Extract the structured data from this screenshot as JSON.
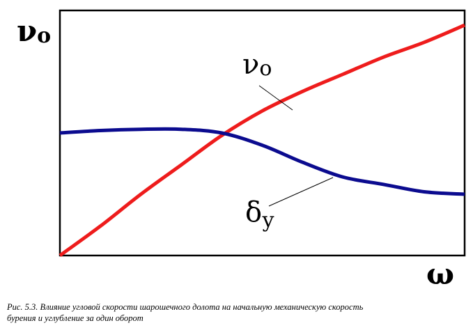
{
  "chart_data": {
    "type": "line",
    "title": "",
    "ylabel": "ν",
    "ylabel_subscript": "о",
    "xlabel": "ω",
    "xlim": [
      0,
      1
    ],
    "ylim": [
      0,
      1
    ],
    "grid": false,
    "legend": "none",
    "series": [
      {
        "name": "ν",
        "name_subscript": "о",
        "color": "#ee1c1c",
        "x": [
          0.0,
          0.1,
          0.2,
          0.3,
          0.4,
          0.5,
          0.6,
          0.7,
          0.8,
          0.9,
          1.0
        ],
        "values": [
          0.0,
          0.12,
          0.25,
          0.37,
          0.49,
          0.59,
          0.67,
          0.74,
          0.81,
          0.87,
          0.94
        ]
      },
      {
        "name": "δ",
        "name_subscript": "у",
        "color": "#0b0b8f",
        "x": [
          0.0,
          0.1,
          0.2,
          0.3,
          0.4,
          0.5,
          0.6,
          0.7,
          0.8,
          0.9,
          1.0
        ],
        "values": [
          0.5,
          0.51,
          0.515,
          0.515,
          0.5,
          0.45,
          0.38,
          0.32,
          0.29,
          0.26,
          0.25
        ]
      }
    ]
  },
  "caption": {
    "line1": "Рис. 5.3. Влияние угловой скорости шарошечного долота на начальную механическую скорость",
    "line2": "бурения и углубление за один оборот"
  }
}
